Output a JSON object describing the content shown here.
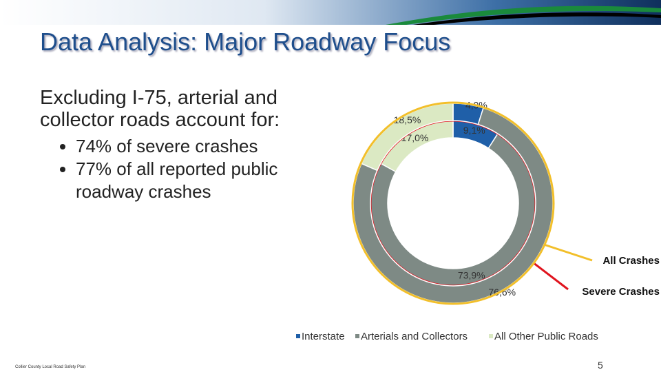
{
  "header": {
    "title": "Data Analysis:  Major Roadway Focus"
  },
  "body": {
    "lead": "Excluding I-75, arterial and collector roads account for:",
    "bullets": [
      "74% of severe crashes",
      "77% of all reported public roadway crashes"
    ]
  },
  "footer": {
    "source": "Collier County Local Road Safety Plan",
    "page": "5"
  },
  "chart_data": {
    "type": "donut",
    "categories": [
      "Interstate",
      "Arterials and Collectors",
      "All Other Public Roads"
    ],
    "colors": [
      "#1f5fa8",
      "#7e8a85",
      "#dbe9c3"
    ],
    "series": [
      {
        "name": "Severe Crashes",
        "color": "#e0141e",
        "values": [
          9.1,
          73.9,
          17.0
        ],
        "value_labels": [
          "9,1%",
          "73,9%",
          "17,0%"
        ]
      },
      {
        "name": "All Crashes",
        "color": "#f2bf2a",
        "values": [
          4.9,
          76.6,
          18.5
        ],
        "value_labels": [
          "4,9%",
          "76,6%",
          "18,5%"
        ]
      }
    ]
  }
}
